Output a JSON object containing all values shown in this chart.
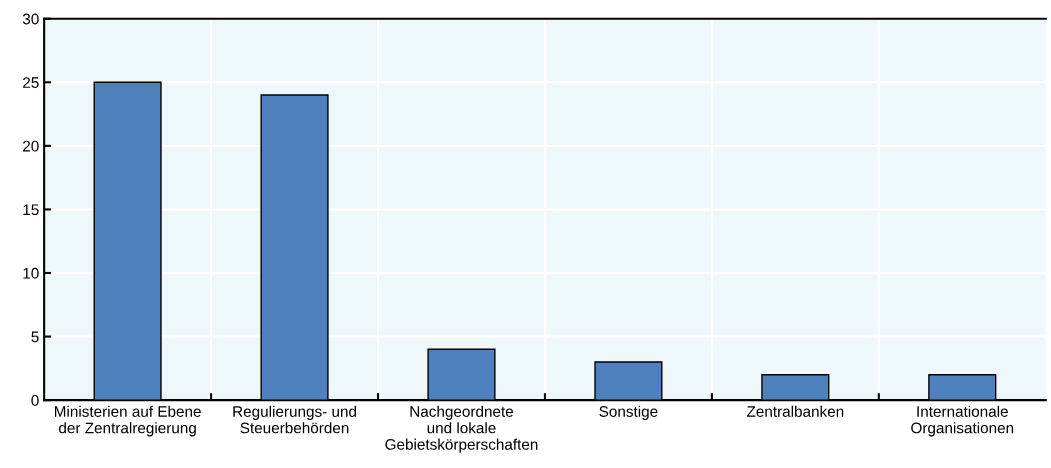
{
  "chart_data": {
    "type": "bar",
    "categories": [
      "Ministerien auf Ebene\nder Zentralregierung",
      "Regulierungs- und\nSteuerbehörden",
      "Nachgeordnete\nund lokale\nGebietskörperschaften",
      "Sonstige",
      "Zentralbanken",
      "Internationale\nOrganisationen"
    ],
    "values": [
      25,
      24,
      4,
      3,
      2,
      2
    ],
    "color": "#4e81bd",
    "ylim": [
      0,
      30
    ],
    "yticks": [
      0,
      5,
      10,
      15,
      20,
      25,
      30
    ],
    "grid": true
  }
}
